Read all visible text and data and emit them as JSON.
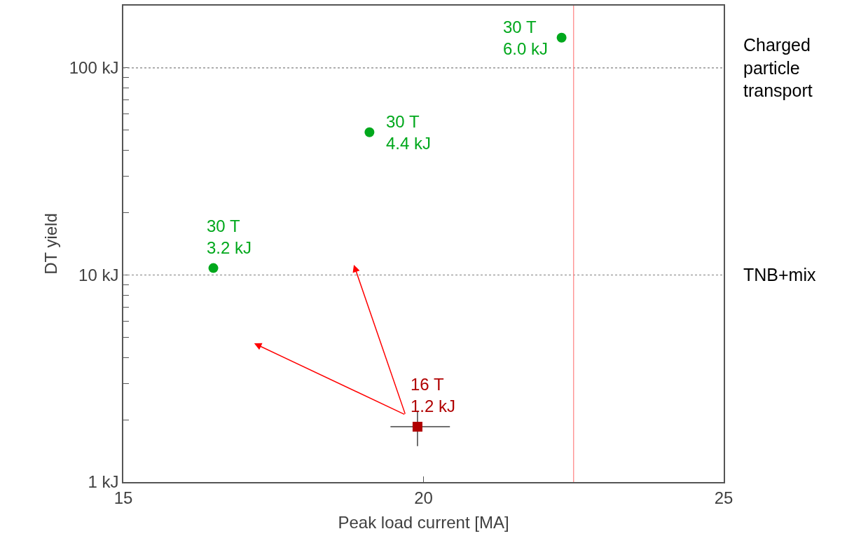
{
  "chart_data": {
    "type": "scatter",
    "xlabel": "Peak load current [MA]",
    "ylabel": "DT yield",
    "log": "y",
    "grid": false,
    "xlim": [
      15,
      25
    ],
    "xticks": [
      15,
      20,
      25
    ],
    "ylim": [
      1,
      200
    ],
    "yticks": [
      {
        "value": 1,
        "label": "1 kJ"
      },
      {
        "value": 2,
        "label": null
      },
      {
        "value": 3,
        "label": null
      },
      {
        "value": 4,
        "label": null
      },
      {
        "value": 5,
        "label": null
      },
      {
        "value": 6,
        "label": null
      },
      {
        "value": 7,
        "label": null
      },
      {
        "value": 8,
        "label": null
      },
      {
        "value": 9,
        "label": null
      },
      {
        "value": 10,
        "label": "10 kJ"
      },
      {
        "value": 20,
        "label": null
      },
      {
        "value": 30,
        "label": null
      },
      {
        "value": 40,
        "label": null
      },
      {
        "value": 50,
        "label": null
      },
      {
        "value": 60,
        "label": null
      },
      {
        "value": 70,
        "label": null
      },
      {
        "value": 80,
        "label": null
      },
      {
        "value": 90,
        "label": null
      },
      {
        "value": 100,
        "label": "100 kJ"
      }
    ],
    "series": [
      {
        "color": "#00a81c",
        "marker": "circle",
        "x": [
          16.5,
          19.1,
          22.3
        ],
        "values": [
          10.8,
          48.9,
          140
        ]
      },
      {
        "color": "#b00000",
        "marker": "square",
        "x": [
          19.9
        ],
        "values": [
          1.85
        ],
        "errors": [
          [
            1.49,
            2.21
          ]
        ],
        "xerrors": [
          [
            19.45,
            20.44
          ]
        ]
      }
    ],
    "annotations": [
      {
        "text": "30 T\n3.2 kJ",
        "x": 16.5,
        "y": 10.8
      },
      {
        "text": "30 T\n4.4 kJ",
        "x": 19.1,
        "y": 48.9
      },
      {
        "text": "30 T\n6.0 kJ",
        "x": 22.3,
        "y": 140
      },
      {
        "text": "16 T\n1.2 kJ",
        "x": 19.9,
        "y": 1.85
      }
    ],
    "ref_lines": [
      {
        "axis": "y",
        "value": 10,
        "label": "TNB+mix",
        "color": "#808080",
        "line_style": "dotted"
      },
      {
        "axis": "y",
        "value": 100,
        "label": "Charged\nparticle\ntransport",
        "color": "#808080",
        "line_style": "dotted"
      },
      {
        "axis": "x",
        "value": 22.5,
        "color": "#ff8080",
        "line_style": "solid"
      }
    ]
  }
}
